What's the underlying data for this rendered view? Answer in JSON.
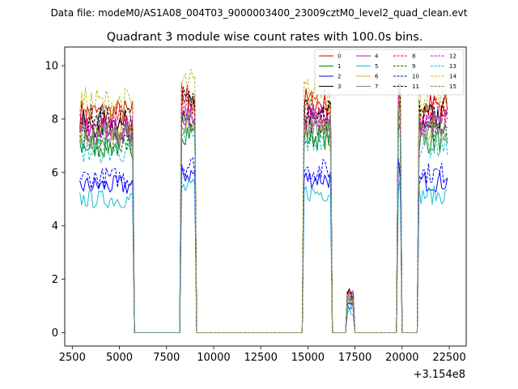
{
  "header": {
    "suptitle": "Data file: modeM0/AS1A08_004T03_9000003400_23009cztM0_level2_quad_clean.evt",
    "title": "Quadrant 3 module wise count rates with 100.0s bins."
  },
  "chart_data": {
    "type": "line",
    "title": "Quadrant 3 module wise count rates with 100.0s bins.",
    "xlabel": "",
    "ylabel": "",
    "x_offset_label": "+3.154e8",
    "xlim": [
      2100,
      23400
    ],
    "ylim": [
      -0.5,
      10.7
    ],
    "xticks": [
      2500,
      5000,
      7500,
      10000,
      12500,
      15000,
      17500,
      20000,
      22500
    ],
    "xtick_labels": [
      "2500",
      "5000",
      "7500",
      "10000",
      "12500",
      "15000",
      "17500",
      "20000",
      "22500"
    ],
    "yticks": [
      0,
      2,
      4,
      6,
      8,
      10
    ],
    "ytick_labels": [
      "0",
      "2",
      "4",
      "6",
      "8",
      "10"
    ],
    "legend_position": "upper-right",
    "series": [
      {
        "name": "0",
        "color": "#cc0000",
        "dash": "solid",
        "base": 8.2
      },
      {
        "name": "1",
        "color": "#008000",
        "dash": "solid",
        "base": 7.0
      },
      {
        "name": "2",
        "color": "#0000ff",
        "dash": "solid",
        "base": 5.5
      },
      {
        "name": "3",
        "color": "#000000",
        "dash": "solid",
        "base": 7.8
      },
      {
        "name": "4",
        "color": "#cc00cc",
        "dash": "solid",
        "base": 7.6
      },
      {
        "name": "5",
        "color": "#17becf",
        "dash": "solid",
        "base": 5.0
      },
      {
        "name": "6",
        "color": "#bcbd22",
        "dash": "solid",
        "base": 7.4
      },
      {
        "name": "7",
        "color": "#7f7f7f",
        "dash": "solid",
        "base": 7.3
      },
      {
        "name": "8",
        "color": "#ff0000",
        "dash": "dashed",
        "base": 8.0
      },
      {
        "name": "9",
        "color": "#008000",
        "dash": "dashed",
        "base": 7.2
      },
      {
        "name": "10",
        "color": "#0000ff",
        "dash": "dashed",
        "base": 5.8
      },
      {
        "name": "11",
        "color": "#000000",
        "dash": "dashed",
        "base": 8.0
      },
      {
        "name": "12",
        "color": "#cc00cc",
        "dash": "dashed",
        "base": 7.7
      },
      {
        "name": "13",
        "color": "#17becf",
        "dash": "dashed",
        "base": 6.8
      },
      {
        "name": "14",
        "color": "#bcbd22",
        "dash": "dashed",
        "base": 8.6
      },
      {
        "name": "15",
        "color": "#7f7f7f",
        "dash": "dashed",
        "base": 7.5
      }
    ],
    "segments": [
      {
        "start": 2900,
        "end": 5700,
        "level": 1.0
      },
      {
        "start": 5800,
        "end": 8200,
        "level": 0.0
      },
      {
        "start": 8300,
        "end": 9000,
        "level": 1.08
      },
      {
        "start": 9100,
        "end": 14700,
        "level": 0.0
      },
      {
        "start": 14800,
        "end": 16200,
        "level": 1.05
      },
      {
        "start": 16300,
        "end": 17000,
        "level": 0.0
      },
      {
        "start": 17100,
        "end": 17400,
        "level": 0.16
      },
      {
        "start": 17500,
        "end": 19700,
        "level": 0.0
      },
      {
        "start": 19800,
        "end": 19900,
        "level": 1.12
      },
      {
        "start": 20000,
        "end": 20800,
        "level": 0.0
      },
      {
        "start": 20900,
        "end": 22400,
        "level": 1.03
      }
    ]
  }
}
